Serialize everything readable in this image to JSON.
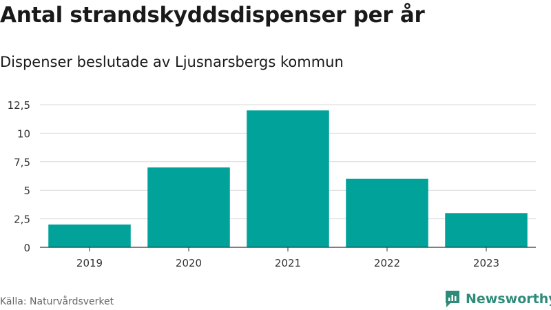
{
  "header": {
    "title": "Antal strandskyddsdispenser per år",
    "subtitle": "Dispenser beslutade av Ljusnarsbergs kommun"
  },
  "footer": {
    "source": "Källa: Naturvårdsverket",
    "brand": "Newsworthy"
  },
  "colors": {
    "bar": "#00a29a",
    "grid": "#d9d9d9",
    "axis": "#333333",
    "brand": "#2e8b7a"
  },
  "chart_data": {
    "type": "bar",
    "title": "Antal strandskyddsdispenser per år",
    "subtitle": "Dispenser beslutade av Ljusnarsbergs kommun",
    "categories": [
      "2019",
      "2020",
      "2021",
      "2022",
      "2023"
    ],
    "values": [
      2,
      7,
      12,
      6,
      3
    ],
    "ylim": [
      0,
      12.5
    ],
    "yticks": [
      0,
      2.5,
      5,
      7.5,
      10,
      12.5
    ],
    "ytick_labels": [
      "0",
      "2,5",
      "5",
      "7,5",
      "10",
      "12,5"
    ],
    "grid": true,
    "xlabel": "",
    "ylabel": ""
  }
}
